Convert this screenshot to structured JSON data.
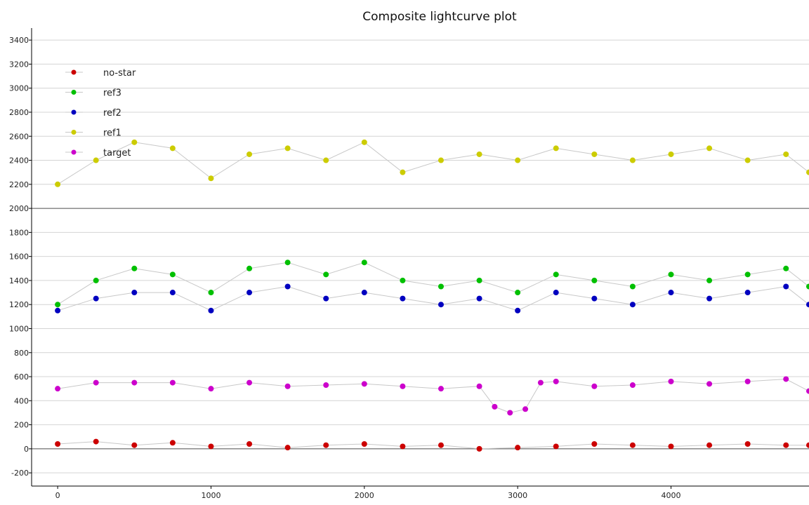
{
  "chart_data": {
    "type": "scatter",
    "title": "Composite lightcurve plot",
    "xlabel": "",
    "ylabel": "",
    "xlim": [
      -170,
      4900
    ],
    "ylim": [
      -310,
      3500
    ],
    "x_ticks": [
      0,
      1000,
      2000,
      3000,
      4000
    ],
    "y_ticks": [
      -200,
      0,
      200,
      400,
      600,
      800,
      1000,
      1200,
      1400,
      1600,
      1800,
      2000,
      2200,
      2400,
      2600,
      2800,
      3000,
      3200,
      3400
    ],
    "reference_lines_y": [
      0,
      2000
    ],
    "grid": true,
    "legend_position": "top-left",
    "line_color": "#c8c8c8",
    "series": [
      {
        "name": "no-star",
        "color": "#cc0000",
        "marker": "circle",
        "x": [
          0,
          250,
          500,
          750,
          1000,
          1250,
          1500,
          1750,
          2000,
          2250,
          2500,
          2750,
          3000,
          3250,
          3500,
          3750,
          4000,
          4250,
          4500,
          4750,
          4900
        ],
        "values": [
          40,
          60,
          30,
          50,
          20,
          40,
          10,
          30,
          40,
          20,
          30,
          0,
          10,
          20,
          40,
          30,
          20,
          30,
          40,
          30,
          30
        ]
      },
      {
        "name": "ref3",
        "color": "#00c000",
        "marker": "circle",
        "x": [
          0,
          250,
          500,
          750,
          1000,
          1250,
          1500,
          1750,
          2000,
          2250,
          2500,
          2750,
          3000,
          3250,
          3500,
          3750,
          4000,
          4250,
          4500,
          4750,
          4900
        ],
        "values": [
          1200,
          1400,
          1500,
          1450,
          1300,
          1500,
          1550,
          1450,
          1550,
          1400,
          1350,
          1400,
          1300,
          1450,
          1400,
          1350,
          1450,
          1400,
          1450,
          1500,
          1350
        ]
      },
      {
        "name": "ref2",
        "color": "#0000c0",
        "marker": "circle",
        "x": [
          0,
          250,
          500,
          750,
          1000,
          1250,
          1500,
          1750,
          2000,
          2250,
          2500,
          2750,
          3000,
          3250,
          3500,
          3750,
          4000,
          4250,
          4500,
          4750,
          4900
        ],
        "values": [
          1150,
          1250,
          1300,
          1300,
          1150,
          1300,
          1350,
          1250,
          1300,
          1250,
          1200,
          1250,
          1150,
          1300,
          1250,
          1200,
          1300,
          1250,
          1300,
          1350,
          1200
        ]
      },
      {
        "name": "ref1",
        "color": "#cccc00",
        "marker": "circle",
        "x": [
          0,
          250,
          500,
          750,
          1000,
          1250,
          1500,
          1750,
          2000,
          2250,
          2500,
          2750,
          3000,
          3250,
          3500,
          3750,
          4000,
          4250,
          4500,
          4750,
          4900
        ],
        "values": [
          2200,
          2400,
          2550,
          2500,
          2250,
          2450,
          2500,
          2400,
          2550,
          2300,
          2400,
          2450,
          2400,
          2500,
          2450,
          2400,
          2450,
          2500,
          2400,
          2450,
          2300
        ]
      },
      {
        "name": "target",
        "color": "#cc00cc",
        "marker": "circle",
        "x": [
          0,
          250,
          500,
          750,
          1000,
          1250,
          1500,
          1750,
          2000,
          2250,
          2500,
          2750,
          2850,
          2950,
          3050,
          3150,
          3250,
          3500,
          3750,
          4000,
          4250,
          4500,
          4750,
          4900
        ],
        "values": [
          500,
          550,
          550,
          550,
          500,
          550,
          520,
          530,
          540,
          520,
          500,
          520,
          350,
          300,
          330,
          550,
          560,
          520,
          530,
          560,
          540,
          560,
          580,
          480
        ]
      }
    ]
  }
}
